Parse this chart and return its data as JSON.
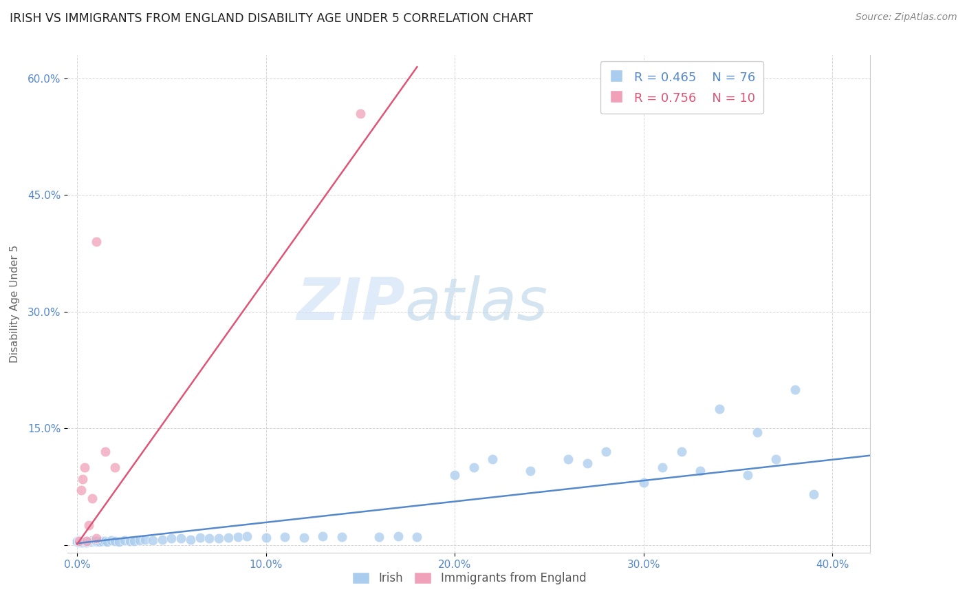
{
  "title": "IRISH VS IMMIGRANTS FROM ENGLAND DISABILITY AGE UNDER 5 CORRELATION CHART",
  "source": "Source: ZipAtlas.com",
  "ylabel": "Disability Age Under 5",
  "watermark_zip": "ZIP",
  "watermark_atlas": "atlas",
  "legend_irish_r": "R = 0.465",
  "legend_irish_n": "N = 76",
  "legend_eng_r": "R = 0.756",
  "legend_eng_n": "N = 10",
  "xlim": [
    -0.005,
    0.42
  ],
  "ylim": [
    -0.01,
    0.63
  ],
  "xticks": [
    0.0,
    0.1,
    0.2,
    0.3,
    0.4
  ],
  "yticks": [
    0.0,
    0.15,
    0.3,
    0.45,
    0.6
  ],
  "ytick_labels": [
    "",
    "15.0%",
    "30.0%",
    "45.0%",
    "60.0%"
  ],
  "xtick_labels": [
    "0.0%",
    "10.0%",
    "20.0%",
    "30.0%",
    "40.0%"
  ],
  "irish_color": "#aaccee",
  "english_color": "#f0a0b8",
  "irish_line_color": "#5588cc",
  "english_line_color": "#dd5577",
  "background_color": "#ffffff",
  "irish_x": [
    0.0,
    0.0,
    0.001,
    0.001,
    0.001,
    0.001,
    0.001,
    0.002,
    0.002,
    0.002,
    0.002,
    0.003,
    0.003,
    0.003,
    0.004,
    0.004,
    0.005,
    0.005,
    0.006,
    0.006,
    0.007,
    0.007,
    0.008,
    0.008,
    0.009,
    0.01,
    0.01,
    0.011,
    0.012,
    0.013,
    0.015,
    0.016,
    0.018,
    0.02,
    0.022,
    0.025,
    0.028,
    0.03,
    0.033,
    0.036,
    0.04,
    0.045,
    0.05,
    0.055,
    0.06,
    0.065,
    0.07,
    0.075,
    0.08,
    0.085,
    0.09,
    0.1,
    0.11,
    0.12,
    0.13,
    0.14,
    0.16,
    0.17,
    0.18,
    0.2,
    0.21,
    0.22,
    0.24,
    0.26,
    0.27,
    0.28,
    0.3,
    0.31,
    0.32,
    0.33,
    0.34,
    0.355,
    0.36,
    0.37,
    0.38,
    0.39
  ],
  "irish_y": [
    0.005,
    0.004,
    0.003,
    0.005,
    0.004,
    0.006,
    0.003,
    0.005,
    0.004,
    0.003,
    0.005,
    0.004,
    0.005,
    0.003,
    0.005,
    0.004,
    0.005,
    0.003,
    0.005,
    0.004,
    0.005,
    0.004,
    0.006,
    0.004,
    0.005,
    0.004,
    0.005,
    0.005,
    0.004,
    0.005,
    0.005,
    0.004,
    0.006,
    0.005,
    0.004,
    0.006,
    0.005,
    0.005,
    0.006,
    0.007,
    0.006,
    0.007,
    0.008,
    0.008,
    0.007,
    0.009,
    0.008,
    0.008,
    0.009,
    0.01,
    0.011,
    0.009,
    0.01,
    0.009,
    0.011,
    0.01,
    0.01,
    0.011,
    0.01,
    0.09,
    0.1,
    0.11,
    0.095,
    0.11,
    0.105,
    0.12,
    0.08,
    0.1,
    0.12,
    0.095,
    0.175,
    0.09,
    0.145,
    0.11,
    0.2,
    0.065
  ],
  "english_x": [
    0.001,
    0.002,
    0.003,
    0.004,
    0.005,
    0.006,
    0.008,
    0.01,
    0.015,
    0.02
  ],
  "english_y": [
    0.005,
    0.07,
    0.085,
    0.1,
    0.005,
    0.025,
    0.06,
    0.008,
    0.12,
    0.1
  ],
  "eng_outlier_x": [
    0.01
  ],
  "eng_outlier_y": [
    0.39
  ],
  "eng_outlier2_x": [
    0.15
  ],
  "eng_outlier2_y": [
    0.555
  ],
  "irish_line_x": [
    0.0,
    0.42
  ],
  "irish_line_y": [
    0.002,
    0.115
  ],
  "english_line_x": [
    0.0,
    0.18
  ],
  "english_line_y": [
    0.001,
    0.615
  ]
}
